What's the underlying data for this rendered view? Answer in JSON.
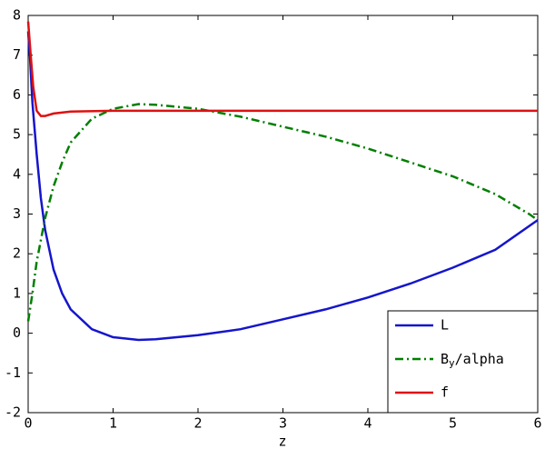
{
  "chart_data": {
    "type": "line",
    "xlabel": "z",
    "xlim": [
      0,
      6
    ],
    "xticks": [
      0,
      1,
      2,
      3,
      4,
      5,
      6
    ],
    "ylim": [
      -2,
      8
    ],
    "yticks": [
      -2,
      -1,
      0,
      1,
      2,
      3,
      4,
      5,
      6,
      7,
      8
    ],
    "grid": false,
    "legend": "lower right",
    "series": [
      {
        "name": "L",
        "color": "#1515cc",
        "linestyle": "solid",
        "x": [
          0,
          0.02,
          0.05,
          0.1,
          0.15,
          0.2,
          0.3,
          0.4,
          0.5,
          0.75,
          1,
          1.3,
          1.5,
          2,
          2.5,
          3,
          3.5,
          4,
          4.5,
          5,
          5.5,
          6
        ],
        "values": [
          7.6,
          7,
          5.8,
          4.5,
          3.4,
          2.6,
          1.6,
          1.0,
          0.6,
          0.1,
          -0.1,
          -0.17,
          -0.15,
          -0.05,
          0.1,
          0.35,
          0.6,
          0.9,
          1.25,
          1.65,
          2.1,
          2.85
        ]
      },
      {
        "name": "By/alpha",
        "color": "#007f00",
        "linestyle": "dashdot",
        "x": [
          0,
          0.05,
          0.1,
          0.2,
          0.3,
          0.4,
          0.5,
          0.75,
          1,
          1.3,
          1.5,
          2,
          2.5,
          3,
          3.5,
          4,
          4.5,
          5,
          5.5,
          5.9,
          6
        ],
        "values": [
          0.3,
          1.0,
          1.8,
          2.9,
          3.7,
          4.3,
          4.8,
          5.4,
          5.65,
          5.77,
          5.75,
          5.65,
          5.45,
          5.2,
          4.95,
          4.65,
          4.3,
          3.95,
          3.5,
          3.0,
          2.85
        ]
      },
      {
        "name": "f",
        "color": "#dd1111",
        "linestyle": "solid",
        "x": [
          0,
          0.03,
          0.06,
          0.1,
          0.15,
          0.2,
          0.3,
          0.5,
          1,
          2,
          3,
          4,
          5,
          6
        ],
        "values": [
          7.85,
          7.0,
          6.2,
          5.6,
          5.47,
          5.47,
          5.53,
          5.58,
          5.6,
          5.6,
          5.6,
          5.6,
          5.6,
          5.6
        ]
      }
    ]
  }
}
